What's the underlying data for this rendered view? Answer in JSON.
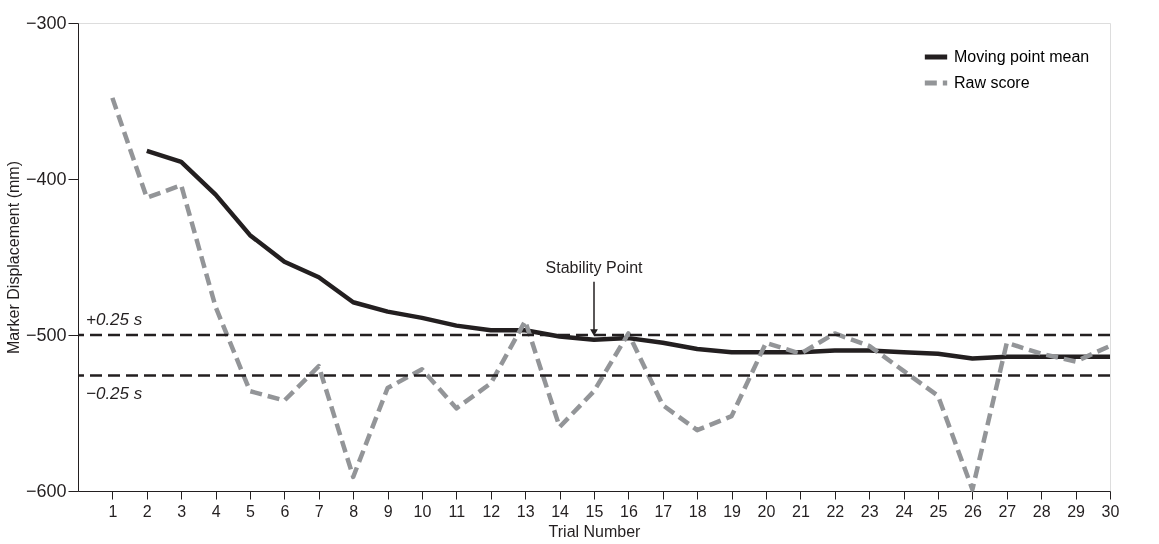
{
  "chart_data": {
    "type": "line",
    "xlabel": "Trial Number",
    "ylabel": "Marker Displacement (mm)",
    "x": [
      1,
      2,
      3,
      4,
      5,
      6,
      7,
      8,
      9,
      10,
      11,
      12,
      13,
      14,
      15,
      16,
      17,
      18,
      19,
      20,
      21,
      22,
      23,
      24,
      25,
      26,
      27,
      28,
      29,
      30
    ],
    "series": [
      {
        "name": "Moving point mean",
        "color": "#231f20",
        "line_style": "solid",
        "values": [
          null,
          -382,
          -389,
          -410,
          -436,
          -453,
          -463,
          -479,
          -485,
          -489,
          -494,
          -497,
          -497,
          -501,
          -503,
          -502,
          -505,
          -509,
          -511,
          -511,
          -511,
          -510,
          -510,
          -511,
          -512,
          -515,
          -514,
          -514,
          -514,
          -514
        ]
      },
      {
        "name": "Raw score",
        "color": "#939598",
        "line_style": "dashed",
        "values": [
          -348,
          -412,
          -404,
          -482,
          -536,
          -542,
          -520,
          -591,
          -534,
          -522,
          -547,
          -531,
          -491,
          -559,
          -536,
          -499,
          -545,
          -561,
          -552,
          -505,
          -512,
          -499,
          -507,
          -523,
          -539,
          -599,
          -505,
          -512,
          -517,
          -507
        ]
      }
    ],
    "xlim": [
      0,
      30
    ],
    "xticks": [
      1,
      2,
      3,
      4,
      5,
      6,
      7,
      8,
      9,
      10,
      11,
      12,
      13,
      14,
      15,
      16,
      17,
      18,
      19,
      20,
      21,
      22,
      23,
      24,
      25,
      26,
      27,
      28,
      29,
      30
    ],
    "ylim": [
      -600,
      -300
    ],
    "yticks": [
      -600,
      -500,
      -400,
      -300
    ],
    "ref_lines": [
      {
        "axis": "y",
        "value": -500,
        "label": "+0.25 s",
        "color": "#231f20",
        "line_style": "dashed"
      },
      {
        "axis": "y",
        "value": -526,
        "label": "−0.25 s",
        "color": "#231f20",
        "line_style": "dashed"
      }
    ],
    "annotations": [
      {
        "text": "Stability Point",
        "x": 15,
        "y": -503
      }
    ],
    "legend": "top right",
    "grid": false,
    "marker": "none"
  }
}
